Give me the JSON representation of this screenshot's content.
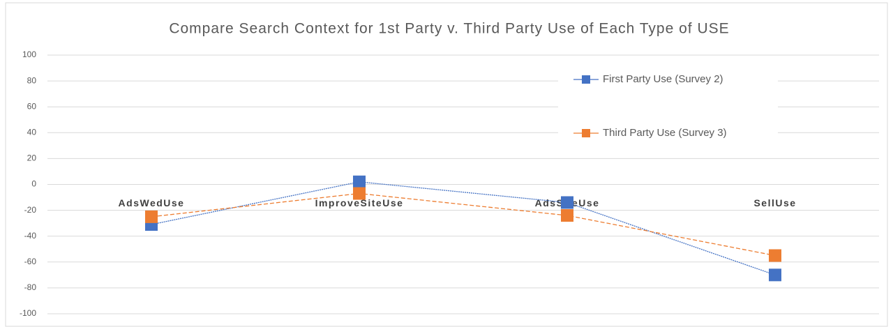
{
  "chart_data": {
    "type": "line",
    "title": "Compare Search Context for 1st Party v. Third Party Use of Each Type of USE",
    "categories": [
      "AdsWedUse",
      "ImproveSiteUse",
      "AdsSiteUse",
      "SellUse"
    ],
    "series": [
      {
        "name": "First Party Use (Survey 2)",
        "color": "#4472c4",
        "values": [
          -31,
          2,
          -14,
          -70
        ]
      },
      {
        "name": "Third Party Use (Survey 3)",
        "color": "#ed7d31",
        "values": [
          -25,
          -7,
          -24,
          -55
        ]
      }
    ],
    "ylim": [
      -100,
      100
    ],
    "yticks": [
      -100,
      -80,
      -60,
      -40,
      -20,
      0,
      20,
      40,
      60,
      80,
      100
    ],
    "grid": true,
    "legend": "right"
  }
}
